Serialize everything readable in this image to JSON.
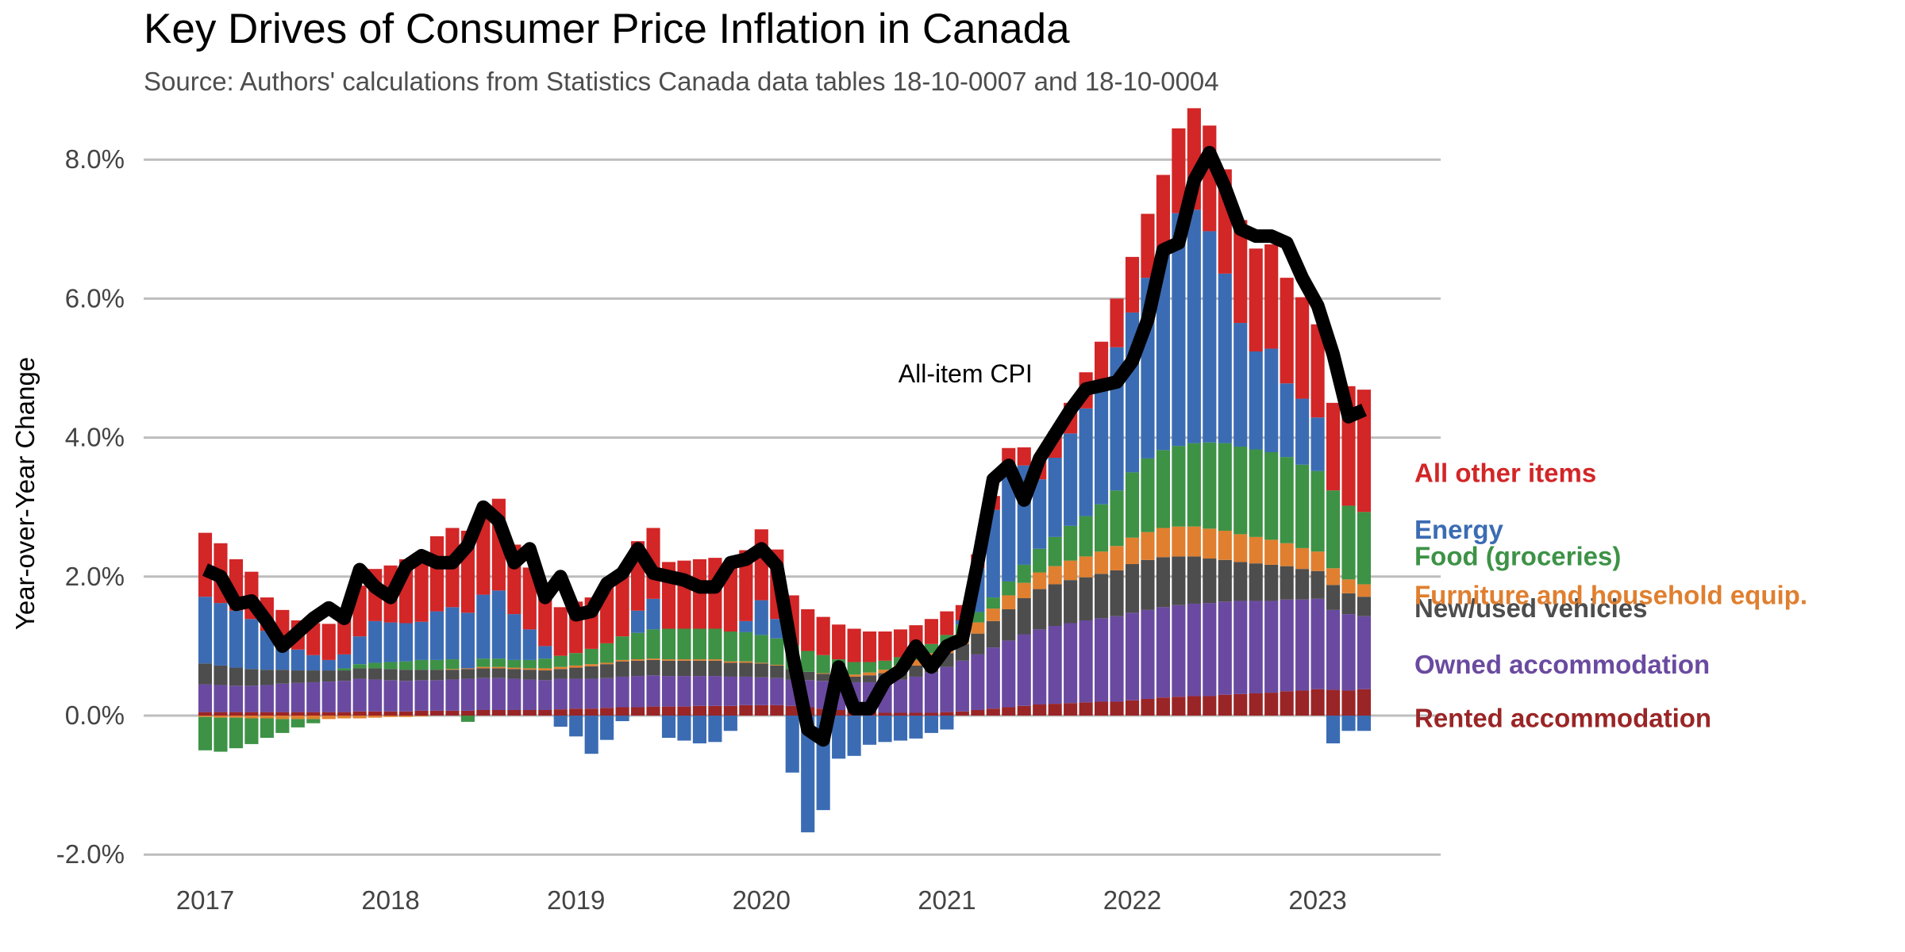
{
  "chart_data": {
    "type": "bar",
    "stacking": "diverging",
    "title": "Key Drives of Consumer Price Inflation in Canada",
    "subtitle": "Source: Authors' calculations from Statistics Canada data tables 18-10-0007 and 18-10-0004",
    "ylabel": "Year-over-Year Change",
    "xlabel": "",
    "ylim": [
      -2.2,
      8.4
    ],
    "xlim": [
      2016.75,
      2023.42
    ],
    "grid": true,
    "y_ticks": [
      -2,
      0,
      2,
      4,
      6,
      8
    ],
    "y_tick_labels": [
      "-2.0%",
      "0.0%",
      "2.0%",
      "4.0%",
      "6.0%",
      "8.0%"
    ],
    "x_ticks": [
      2017,
      2018,
      2019,
      2020,
      2021,
      2022,
      2023
    ],
    "x_tick_labels": [
      "2017",
      "2018",
      "2019",
      "2020",
      "2021",
      "2022",
      "2023"
    ],
    "legend_placement": "right",
    "annotations": [
      {
        "text": "All-item CPI",
        "x": 2021.1,
        "y": 4.92
      }
    ],
    "start": {
      "year": 2017,
      "month": 1
    },
    "series": [
      {
        "key": "rent",
        "name": "Rented accommodation",
        "color": "#9a2526",
        "label_y": -0.03,
        "values": [
          0.05,
          0.05,
          0.05,
          0.05,
          0.05,
          0.05,
          0.05,
          0.05,
          0.05,
          0.05,
          0.06,
          0.06,
          0.06,
          0.06,
          0.07,
          0.07,
          0.07,
          0.07,
          0.08,
          0.08,
          0.08,
          0.08,
          0.08,
          0.09,
          0.1,
          0.1,
          0.11,
          0.12,
          0.12,
          0.13,
          0.13,
          0.13,
          0.14,
          0.14,
          0.14,
          0.15,
          0.15,
          0.15,
          0.14,
          0.12,
          0.1,
          0.08,
          0.06,
          0.05,
          0.04,
          0.04,
          0.04,
          0.04,
          0.05,
          0.06,
          0.08,
          0.1,
          0.12,
          0.14,
          0.16,
          0.17,
          0.18,
          0.19,
          0.2,
          0.2,
          0.22,
          0.24,
          0.26,
          0.27,
          0.28,
          0.28,
          0.3,
          0.31,
          0.32,
          0.33,
          0.35,
          0.36,
          0.38,
          0.37,
          0.36,
          0.38
        ]
      },
      {
        "key": "owned",
        "name": "Owned accommodation",
        "color": "#6a4aa0",
        "label_y": 0.74,
        "values": [
          0.4,
          0.39,
          0.38,
          0.38,
          0.39,
          0.41,
          0.42,
          0.43,
          0.44,
          0.45,
          0.47,
          0.46,
          0.45,
          0.44,
          0.44,
          0.44,
          0.45,
          0.46,
          0.46,
          0.46,
          0.45,
          0.44,
          0.43,
          0.44,
          0.43,
          0.43,
          0.43,
          0.44,
          0.45,
          0.45,
          0.44,
          0.44,
          0.43,
          0.43,
          0.42,
          0.41,
          0.4,
          0.39,
          0.38,
          0.39,
          0.4,
          0.41,
          0.42,
          0.43,
          0.45,
          0.48,
          0.52,
          0.58,
          0.65,
          0.73,
          0.8,
          0.88,
          0.96,
          1.03,
          1.08,
          1.12,
          1.15,
          1.18,
          1.2,
          1.23,
          1.26,
          1.28,
          1.3,
          1.32,
          1.33,
          1.34,
          1.34,
          1.34,
          1.33,
          1.32,
          1.32,
          1.31,
          1.3,
          1.15,
          1.1,
          1.05
        ]
      },
      {
        "key": "vehicles",
        "name": "New/used vehicles",
        "color": "#4d4d4d",
        "label_y": 1.55,
        "values": [
          0.3,
          0.28,
          0.26,
          0.24,
          0.22,
          0.2,
          0.18,
          0.17,
          0.16,
          0.15,
          0.15,
          0.16,
          0.16,
          0.16,
          0.15,
          0.15,
          0.14,
          0.14,
          0.14,
          0.14,
          0.14,
          0.14,
          0.14,
          0.14,
          0.16,
          0.18,
          0.2,
          0.22,
          0.22,
          0.22,
          0.22,
          0.22,
          0.22,
          0.22,
          0.2,
          0.2,
          0.2,
          0.18,
          0.15,
          0.12,
          0.1,
          0.08,
          0.08,
          0.1,
          0.12,
          0.14,
          0.16,
          0.18,
          0.2,
          0.24,
          0.3,
          0.38,
          0.45,
          0.52,
          0.58,
          0.6,
          0.62,
          0.62,
          0.64,
          0.66,
          0.7,
          0.72,
          0.72,
          0.7,
          0.68,
          0.64,
          0.6,
          0.56,
          0.54,
          0.52,
          0.48,
          0.44,
          0.4,
          0.36,
          0.3,
          0.28
        ]
      },
      {
        "key": "furniture",
        "name": "Furniture and household equip.",
        "color": "#e07f2f",
        "label_y": 1.74,
        "values": [
          -0.02,
          -0.03,
          -0.03,
          -0.04,
          -0.04,
          -0.05,
          -0.05,
          -0.05,
          -0.05,
          -0.04,
          -0.04,
          -0.03,
          -0.02,
          -0.02,
          -0.01,
          0,
          0.01,
          0.01,
          0.02,
          0.02,
          0.02,
          0.02,
          0.03,
          0.03,
          0.03,
          0.03,
          0.02,
          0.02,
          0.02,
          0.02,
          0.02,
          0.02,
          0.02,
          0.02,
          0.02,
          0.02,
          0.01,
          0.01,
          0,
          0,
          0.01,
          0.02,
          0.03,
          0.04,
          0.05,
          0.06,
          0.08,
          0.1,
          0.12,
          0.14,
          0.16,
          0.18,
          0.2,
          0.22,
          0.24,
          0.26,
          0.28,
          0.3,
          0.32,
          0.35,
          0.38,
          0.4,
          0.42,
          0.43,
          0.43,
          0.43,
          0.42,
          0.4,
          0.38,
          0.36,
          0.33,
          0.3,
          0.28,
          0.24,
          0.2,
          0.18
        ]
      },
      {
        "key": "food",
        "name": "Food (groceries)",
        "color": "#3d9246",
        "label_y": 2.3,
        "values": [
          -0.48,
          -0.49,
          -0.44,
          -0.37,
          -0.28,
          -0.2,
          -0.12,
          -0.06,
          0,
          0.03,
          0.06,
          0.08,
          0.1,
          0.12,
          0.14,
          0.14,
          0.14,
          -0.09,
          0.12,
          0.12,
          0.11,
          0.12,
          0.14,
          0.16,
          0.18,
          0.22,
          0.28,
          0.34,
          0.38,
          0.42,
          0.44,
          0.44,
          0.44,
          0.44,
          0.43,
          0.42,
          0.4,
          0.38,
          0.34,
          0.3,
          0.26,
          0.22,
          0.18,
          0.15,
          0.13,
          0.12,
          0.12,
          0.13,
          0.14,
          0.14,
          0.15,
          0.16,
          0.2,
          0.26,
          0.34,
          0.42,
          0.5,
          0.58,
          0.68,
          0.8,
          0.94,
          1.06,
          1.12,
          1.16,
          1.2,
          1.24,
          1.26,
          1.26,
          1.26,
          1.26,
          1.24,
          1.2,
          1.16,
          1.12,
          1.06,
          1.04
        ]
      },
      {
        "key": "energy",
        "name": "Energy",
        "color": "#3b6cb3",
        "label_y": 2.68,
        "values": [
          0.96,
          0.9,
          0.82,
          0.72,
          0.56,
          0.42,
          0.3,
          0.22,
          0.15,
          0.2,
          0.4,
          0.6,
          0.57,
          0.55,
          0.55,
          0.7,
          0.75,
          0.8,
          0.92,
          0.98,
          0.66,
          0.44,
          0.18,
          -0.16,
          -0.3,
          -0.55,
          -0.35,
          -0.08,
          0.32,
          0.44,
          -0.32,
          -0.36,
          -0.4,
          -0.38,
          -0.22,
          0.16,
          0.5,
          0.28,
          -0.82,
          -1.68,
          -1.36,
          -0.62,
          -0.58,
          -0.42,
          -0.38,
          -0.36,
          -0.33,
          -0.25,
          -0.2,
          0.06,
          0.63,
          1.26,
          1.7,
          1.43,
          1.0,
          1.14,
          1.33,
          1.55,
          1.74,
          2.06,
          2.3,
          2.6,
          2.9,
          3.35,
          3.36,
          3.04,
          2.44,
          1.78,
          1.41,
          1.49,
          1.06,
          0.95,
          0.77,
          -0.4,
          -0.22,
          -0.22
        ]
      },
      {
        "key": "other",
        "name": "All other items",
        "color": "#d22627",
        "label_y": 3.5,
        "values": [
          0.92,
          0.86,
          0.74,
          0.68,
          0.48,
          0.44,
          0.42,
          0.46,
          0.52,
          0.62,
          0.73,
          0.75,
          0.82,
          0.92,
          1.0,
          1.08,
          1.14,
          1.18,
          1.24,
          1.32,
          1.0,
          0.89,
          0.8,
          0.7,
          0.74,
          0.74,
          0.84,
          0.92,
          1.0,
          1.02,
          0.96,
          0.98,
          1.0,
          1.02,
          1.0,
          1.02,
          1.02,
          1.0,
          0.72,
          0.6,
          0.55,
          0.5,
          0.48,
          0.44,
          0.42,
          0.4,
          0.38,
          0.36,
          0.34,
          0.22,
          0.2,
          0.2,
          0.22,
          0.26,
          0.32,
          0.38,
          0.44,
          0.52,
          0.6,
          0.7,
          0.8,
          0.92,
          1.06,
          1.22,
          1.46,
          1.52,
          1.5,
          1.48,
          1.48,
          1.5,
          1.52,
          1.46,
          1.34,
          1.26,
          1.72,
          1.76
        ]
      },
      {
        "key": "cpi",
        "name": "All-item CPI",
        "type": "line",
        "color": "#000000",
        "values": [
          2.1,
          2.0,
          1.6,
          1.65,
          1.35,
          1.0,
          1.2,
          1.4,
          1.55,
          1.4,
          2.1,
          1.85,
          1.7,
          2.15,
          2.3,
          2.2,
          2.2,
          2.45,
          3.0,
          2.8,
          2.2,
          2.4,
          1.7,
          2.0,
          1.45,
          1.5,
          1.9,
          2.05,
          2.4,
          2.05,
          2.0,
          1.95,
          1.85,
          1.85,
          2.2,
          2.25,
          2.4,
          2.15,
          0.9,
          -0.2,
          -0.35,
          0.7,
          0.1,
          0.1,
          0.5,
          0.65,
          1.0,
          0.7,
          1.0,
          1.1,
          2.2,
          3.4,
          3.6,
          3.1,
          3.7,
          4.05,
          4.4,
          4.7,
          4.75,
          4.8,
          5.1,
          5.7,
          6.7,
          6.8,
          7.7,
          8.1,
          7.6,
          7.0,
          6.9,
          6.9,
          6.8,
          6.3,
          5.9,
          5.2,
          4.3,
          4.4
        ]
      }
    ]
  }
}
